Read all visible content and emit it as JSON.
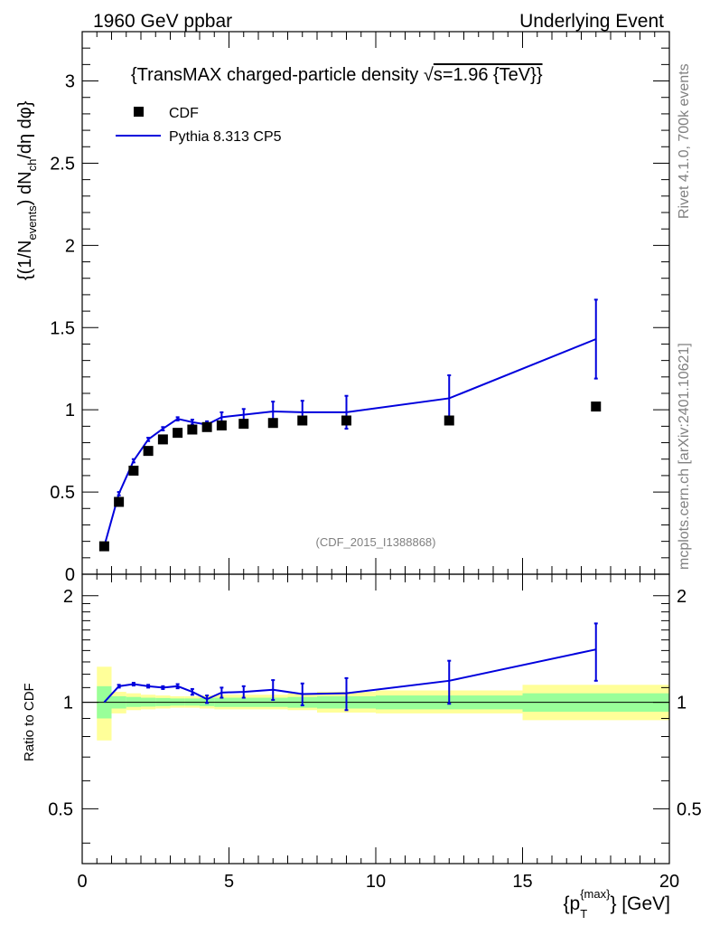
{
  "header": {
    "left": "1960 GeV ppbar",
    "right": "Underlying Event"
  },
  "side_labels": {
    "rivet": "Rivet 4.1.0,  700k events",
    "mcplots": "mcplots.cern.ch [arXiv:2401.10621]"
  },
  "chart_data": [
    {
      "type": "scatter",
      "panel": "main",
      "title": "{TransMAX charged-particle density √s=1.96 {TeV}}",
      "title_prefix": "{TransMAX charged-particle density ",
      "title_suffix": "s=1.96 {TeV}}",
      "ylabel": "{(1/N_events) dN_ch/dη dφ}",
      "ylabel_parts": {
        "a": "{(1/N",
        "b": "events",
        "c": ") dN",
        "d": "ch",
        "e": "/dη dφ}"
      },
      "watermark": "(CDF_2015_I1388868)",
      "xlim": [
        0,
        20
      ],
      "ylim": [
        0,
        3.3
      ],
      "yticks": [
        0,
        0.5,
        1,
        1.5,
        2,
        2.5,
        3
      ],
      "ytick_labels": [
        "0",
        "0.5",
        "1",
        "1.5",
        "2",
        "2.5",
        "3"
      ],
      "legend": {
        "placement": "top-left",
        "entries": [
          "CDF",
          "Pythia 8.313 CP5"
        ]
      },
      "series": [
        {
          "name": "CDF",
          "kind": "markers",
          "color": "#000000",
          "x": [
            0.75,
            1.25,
            1.75,
            2.25,
            2.75,
            3.25,
            3.75,
            4.25,
            4.75,
            5.5,
            6.5,
            7.5,
            9.0,
            12.5,
            17.5
          ],
          "y": [
            0.17,
            0.44,
            0.63,
            0.75,
            0.82,
            0.86,
            0.88,
            0.895,
            0.905,
            0.915,
            0.92,
            0.935,
            0.935,
            0.935,
            1.02
          ]
        },
        {
          "name": "Pythia 8.313 CP5",
          "kind": "line",
          "color": "#0000dd",
          "x": [
            0.75,
            1.25,
            1.75,
            2.25,
            2.75,
            3.25,
            3.75,
            4.25,
            4.75,
            5.5,
            6.5,
            7.5,
            9.0,
            12.5,
            17.5
          ],
          "y": [
            0.17,
            0.49,
            0.69,
            0.82,
            0.885,
            0.945,
            0.925,
            0.91,
            0.955,
            0.97,
            0.99,
            0.985,
            0.985,
            1.07,
            1.43
          ],
          "yerr": [
            0.0,
            0.01,
            0.01,
            0.01,
            0.01,
            0.01,
            0.015,
            0.02,
            0.03,
            0.035,
            0.06,
            0.07,
            0.1,
            0.14,
            0.24
          ]
        }
      ]
    },
    {
      "type": "line",
      "panel": "ratio",
      "ylabel": "Ratio to CDF",
      "xlabel": "{p_T^{max}} [GeV]",
      "xlabel_parts": {
        "a": "{p",
        "sub": "T",
        "sup": "{max}",
        "b": "} [GeV]"
      },
      "xlim": [
        0,
        20
      ],
      "ylim": [
        0.35,
        2.3
      ],
      "xticks": [
        0,
        5,
        10,
        15,
        20
      ],
      "xtick_labels": [
        "0",
        "5",
        "10",
        "15",
        "20"
      ],
      "yticks": [
        0.5,
        1,
        2
      ],
      "ytick_labels": [
        "0.5",
        "1",
        "2"
      ],
      "bands": {
        "edges": [
          0.5,
          1.0,
          1.5,
          2.0,
          2.5,
          3.0,
          3.5,
          4.0,
          4.5,
          5.0,
          6.0,
          7.0,
          8.0,
          10.0,
          15.0,
          20.0
        ],
        "yellow_lo": [
          0.78,
          0.93,
          0.95,
          0.955,
          0.96,
          0.965,
          0.965,
          0.96,
          0.955,
          0.955,
          0.955,
          0.95,
          0.935,
          0.93,
          0.89
        ],
        "yellow_hi": [
          1.26,
          1.07,
          1.06,
          1.05,
          1.045,
          1.04,
          1.04,
          1.045,
          1.05,
          1.05,
          1.05,
          1.06,
          1.07,
          1.08,
          1.12
        ],
        "green_lo": [
          0.9,
          0.96,
          0.97,
          0.972,
          0.975,
          0.978,
          0.978,
          0.975,
          0.97,
          0.97,
          0.97,
          0.965,
          0.96,
          0.955,
          0.94
        ],
        "green_hi": [
          1.11,
          1.04,
          1.035,
          1.03,
          1.028,
          1.025,
          1.025,
          1.028,
          1.03,
          1.03,
          1.03,
          1.035,
          1.04,
          1.045,
          1.06
        ]
      },
      "series": [
        {
          "name": "Pythia 8.313 CP5 / CDF",
          "color": "#0000dd",
          "x": [
            0.75,
            1.25,
            1.75,
            2.25,
            2.75,
            3.25,
            3.75,
            4.25,
            4.75,
            5.5,
            6.5,
            7.5,
            9.0,
            12.5,
            17.5
          ],
          "y": [
            1.0,
            1.11,
            1.125,
            1.11,
            1.1,
            1.11,
            1.07,
            1.02,
            1.065,
            1.07,
            1.085,
            1.055,
            1.06,
            1.15,
            1.41
          ],
          "yerr": [
            0.0,
            0.01,
            0.01,
            0.01,
            0.01,
            0.015,
            0.02,
            0.025,
            0.035,
            0.04,
            0.07,
            0.075,
            0.11,
            0.16,
            0.26
          ]
        }
      ]
    }
  ]
}
